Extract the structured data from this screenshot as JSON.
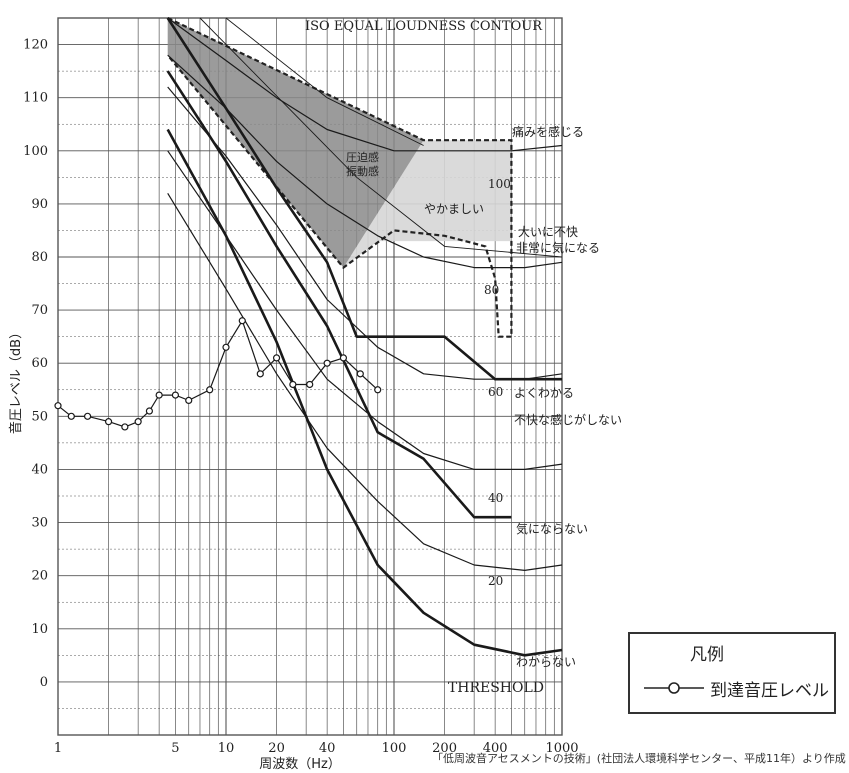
{
  "legend": {
    "title": "凡例",
    "entry_label": "到達音圧レベル"
  },
  "source_note": "「低周波音アセスメントの技術」(社団法人環境科学センター、平成11年）より作成",
  "colors": {
    "grid": "#555555",
    "curve": "#1a1a1a",
    "dark_region": "#8a8a8a",
    "light_region": "#d6d6d6",
    "dashed": "#222222"
  },
  "chart_data": {
    "type": "line",
    "title": "ISO EQUAL LOUDNESS CONTOUR",
    "xlabel": "周波数（Hz）",
    "ylabel": "音圧レベル（dB）",
    "xscale": "log",
    "xlim": [
      1,
      1000
    ],
    "ylim": [
      -10,
      125
    ],
    "x_ticks": [
      {
        "value": 1,
        "label": "1"
      },
      {
        "value": 5,
        "label": "5"
      },
      {
        "value": 10,
        "label": "10"
      },
      {
        "value": 20,
        "label": "20"
      },
      {
        "value": 40,
        "label": "40"
      },
      {
        "value": 100,
        "label": "100"
      },
      {
        "value": 200,
        "label": "200"
      },
      {
        "value": 400,
        "label": "400"
      },
      {
        "value": 1000,
        "label": "1000"
      }
    ],
    "y_ticks": [
      0,
      10,
      20,
      30,
      40,
      50,
      60,
      70,
      80,
      90,
      100,
      110,
      120
    ],
    "grid": true,
    "legend_position": "bottom-right",
    "regions": [
      {
        "name": "圧迫感・振動感",
        "shade": "dark",
        "points": [
          [
            4.5,
            125
          ],
          [
            150,
            102
          ],
          [
            50,
            78
          ],
          [
            4.5,
            118
          ]
        ]
      },
      {
        "name": "やかましい",
        "shade": "light",
        "points": [
          [
            150,
            102
          ],
          [
            500,
            102
          ],
          [
            500,
            83
          ],
          [
            80,
            83
          ],
          [
            50,
            78
          ]
        ]
      }
    ],
    "dashed_boundary": [
      [
        4.5,
        125
      ],
      [
        150,
        102
      ],
      [
        500,
        102
      ],
      [
        500,
        65
      ],
      [
        420,
        65
      ],
      [
        400,
        76
      ],
      [
        350,
        82
      ],
      [
        200,
        84
      ],
      [
        100,
        85
      ],
      [
        50,
        78
      ],
      [
        4.5,
        118
      ]
    ],
    "series": [
      {
        "label": "100",
        "width": 1.2,
        "points": [
          [
            4.5,
            125
          ],
          [
            10,
            117
          ],
          [
            20,
            110
          ],
          [
            40,
            104
          ],
          [
            100,
            100
          ],
          [
            200,
            100
          ],
          [
            500,
            100
          ],
          [
            1000,
            101
          ]
        ]
      },
      {
        "label": "80",
        "width": 1.2,
        "points": [
          [
            4.5,
            118
          ],
          [
            10,
            108
          ],
          [
            20,
            98
          ],
          [
            40,
            90
          ],
          [
            80,
            84
          ],
          [
            150,
            80
          ],
          [
            300,
            78
          ],
          [
            600,
            78
          ],
          [
            1000,
            79
          ]
        ]
      },
      {
        "label": "60",
        "width": 1.2,
        "points": [
          [
            4.5,
            112
          ],
          [
            10,
            99
          ],
          [
            20,
            86
          ],
          [
            40,
            72
          ],
          [
            80,
            63
          ],
          [
            150,
            58
          ],
          [
            300,
            57
          ],
          [
            600,
            57
          ],
          [
            1000,
            58
          ]
        ]
      },
      {
        "label": "40",
        "width": 1.2,
        "points": [
          [
            4.5,
            100
          ],
          [
            10,
            84
          ],
          [
            20,
            70
          ],
          [
            40,
            57
          ],
          [
            80,
            49
          ],
          [
            150,
            43
          ],
          [
            300,
            40
          ],
          [
            600,
            40
          ],
          [
            1000,
            41
          ]
        ]
      },
      {
        "label": "20",
        "width": 1.2,
        "points": [
          [
            4.5,
            92
          ],
          [
            10,
            74
          ],
          [
            20,
            58
          ],
          [
            40,
            44
          ],
          [
            80,
            34
          ],
          [
            150,
            26
          ],
          [
            300,
            22
          ],
          [
            600,
            21
          ],
          [
            1000,
            22
          ]
        ]
      },
      {
        "label": "THRESHOLD",
        "width": 2.6,
        "points": [
          [
            4.5,
            104
          ],
          [
            10,
            84
          ],
          [
            20,
            64
          ],
          [
            40,
            40
          ],
          [
            80,
            22
          ],
          [
            150,
            13
          ],
          [
            300,
            7
          ],
          [
            600,
            5
          ],
          [
            1000,
            6
          ]
        ]
      },
      {
        "label": "",
        "width": 2.6,
        "points": [
          [
            4.5,
            125
          ],
          [
            10,
            108
          ],
          [
            20,
            93
          ],
          [
            40,
            79
          ],
          [
            60,
            65
          ],
          [
            200,
            65
          ],
          [
            400,
            57
          ],
          [
            1000,
            57
          ]
        ]
      },
      {
        "label": "",
        "width": 2.6,
        "points": [
          [
            4.5,
            115
          ],
          [
            10,
            98
          ],
          [
            20,
            82
          ],
          [
            40,
            67
          ],
          [
            80,
            47
          ],
          [
            150,
            42
          ],
          [
            300,
            31
          ],
          [
            500,
            31
          ]
        ]
      }
    ],
    "zone_labels": [
      "痛みを感じる",
      "大いに不快",
      "非常に気になる",
      "よくわかる",
      "不快な感じがしない",
      "気にならない",
      "わからない",
      "圧迫感",
      "振動感",
      "やかましい"
    ],
    "measured": {
      "name": "到達音圧レベル",
      "points": [
        [
          1,
          52
        ],
        [
          1.2,
          50
        ],
        [
          1.5,
          50
        ],
        [
          2,
          49
        ],
        [
          2.5,
          48
        ],
        [
          3,
          49
        ],
        [
          3.5,
          51
        ],
        [
          4,
          54
        ],
        [
          5,
          54
        ],
        [
          6,
          53
        ],
        [
          8,
          55
        ],
        [
          10,
          63
        ],
        [
          12.5,
          68
        ],
        [
          16,
          58
        ],
        [
          20,
          61
        ],
        [
          25,
          56
        ],
        [
          31.5,
          56
        ],
        [
          40,
          60
        ],
        [
          50,
          61
        ],
        [
          63,
          58
        ],
        [
          80,
          55
        ]
      ]
    }
  }
}
